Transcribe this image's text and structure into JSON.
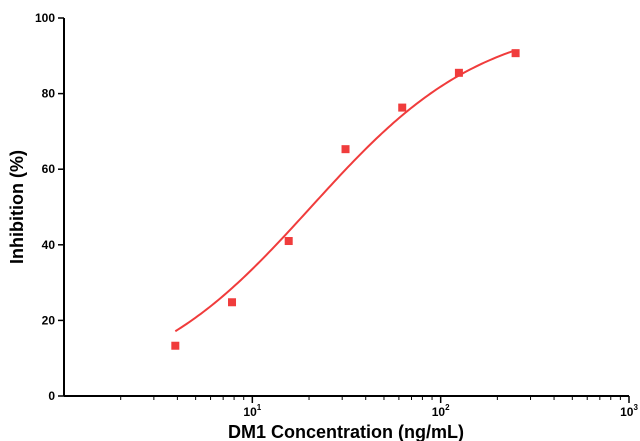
{
  "chart_data": {
    "type": "scatter",
    "title": "",
    "xlabel": "DM1 Concentration (ng/mL)",
    "ylabel": "Inhibition (%)",
    "xscale": "log",
    "xlim": [
      1,
      1000
    ],
    "ylim": [
      0,
      100
    ],
    "grid": false,
    "marker": "square",
    "color": "#f03c3c",
    "yticks": [
      "0",
      "20",
      "40",
      "60",
      "80",
      "100"
    ],
    "xticks": [
      {
        "base": "10",
        "exp": "1",
        "value": 10
      },
      {
        "base": "10",
        "exp": "2",
        "value": 100
      },
      {
        "base": "10",
        "exp": "3",
        "value": 1000
      }
    ],
    "series": [
      {
        "points": [
          {
            "x": 3.9,
            "y": 13.3
          },
          {
            "x": 7.8,
            "y": 24.8
          },
          {
            "x": 15.6,
            "y": 41.0
          },
          {
            "x": 31.25,
            "y": 65.3
          },
          {
            "x": 62.5,
            "y": 76.3
          },
          {
            "x": 125,
            "y": 85.5
          },
          {
            "x": 250,
            "y": 90.7
          }
        ],
        "fit": {
          "model": "4PL",
          "bottom": 0,
          "top": 100,
          "ec50": 20.5,
          "hill": 0.95,
          "x_range": [
            3.9,
            250
          ]
        }
      }
    ]
  }
}
